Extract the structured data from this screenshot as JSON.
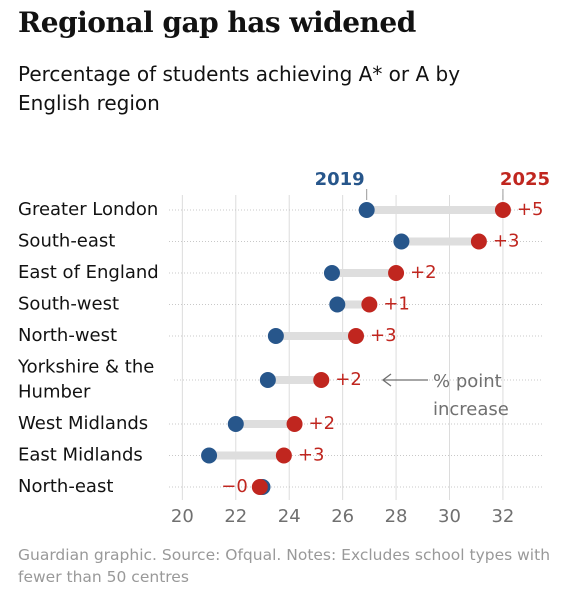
{
  "chart_data": {
    "type": "dumbbell",
    "title": "Regional gap has widened",
    "subtitle": "Percentage of students achieving A* or A by English region",
    "categories": [
      "Greater London",
      "South-east",
      "East of England",
      "South-west",
      "North-west",
      "Yorkshire & the Humber",
      "West Midlands",
      "East Midlands",
      "North-east"
    ],
    "series": [
      {
        "name": "2019",
        "color": "#27568b",
        "values": [
          26.9,
          28.2,
          25.6,
          25.8,
          23.5,
          23.2,
          22.0,
          21.0,
          23.0
        ]
      },
      {
        "name": "2025",
        "color": "#c0261f",
        "values": [
          32.0,
          31.1,
          28.0,
          27.0,
          26.5,
          25.2,
          24.2,
          23.8,
          22.9
        ]
      }
    ],
    "change_labels": [
      "+5",
      "+3",
      "+2",
      "+1",
      "+3",
      "+2",
      "+2",
      "+3",
      "−0"
    ],
    "annotation": [
      "% point",
      "increase"
    ],
    "xlim": [
      19.5,
      33.5
    ],
    "xticks": [
      20,
      22,
      24,
      26,
      28,
      30,
      32
    ],
    "grid": true,
    "source": "Guardian graphic. Source: Ofqual. Notes: Excludes school types with fewer than 50 centres"
  }
}
